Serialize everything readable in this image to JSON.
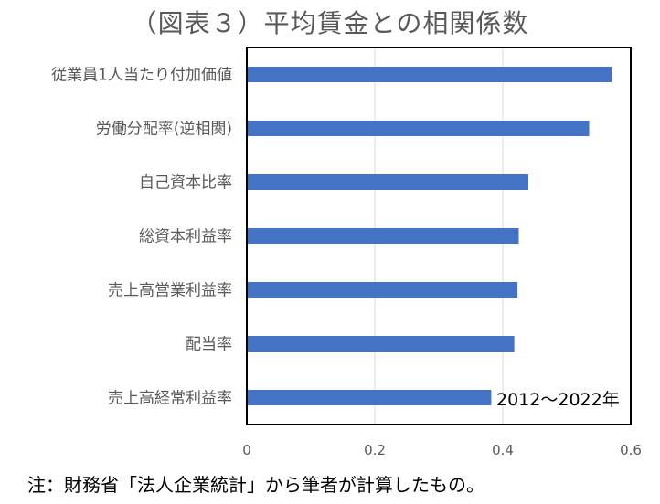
{
  "title": "（図表３）平均賃金との相関係数",
  "note": "注：財務省「法人企業統計」から筆者が計算したもの。",
  "period_label": "2012〜2022年",
  "colors": {
    "bar": "#4472c4",
    "grid": "#d9d9d9",
    "frame": "#000000",
    "text": "#595959"
  },
  "chart_data": {
    "type": "bar",
    "orientation": "horizontal",
    "title": "（図表３）平均賃金との相関係数",
    "categories": [
      "従業員1人当たり付加価値",
      "労働分配率(逆相関)",
      "自己資本比率",
      "総資本利益率",
      "売上高営業利益率",
      "配当率",
      "売上高経常利益率"
    ],
    "values": [
      0.57,
      0.535,
      0.44,
      0.425,
      0.423,
      0.418,
      0.382
    ],
    "xlim": [
      0,
      0.6
    ],
    "xticks": [
      "0",
      "0.2",
      "0.4",
      "0.6"
    ],
    "xtick_values": [
      0,
      0.2,
      0.4,
      0.6
    ],
    "grid": true,
    "legend": "none",
    "annotation": "2012〜2022年"
  }
}
